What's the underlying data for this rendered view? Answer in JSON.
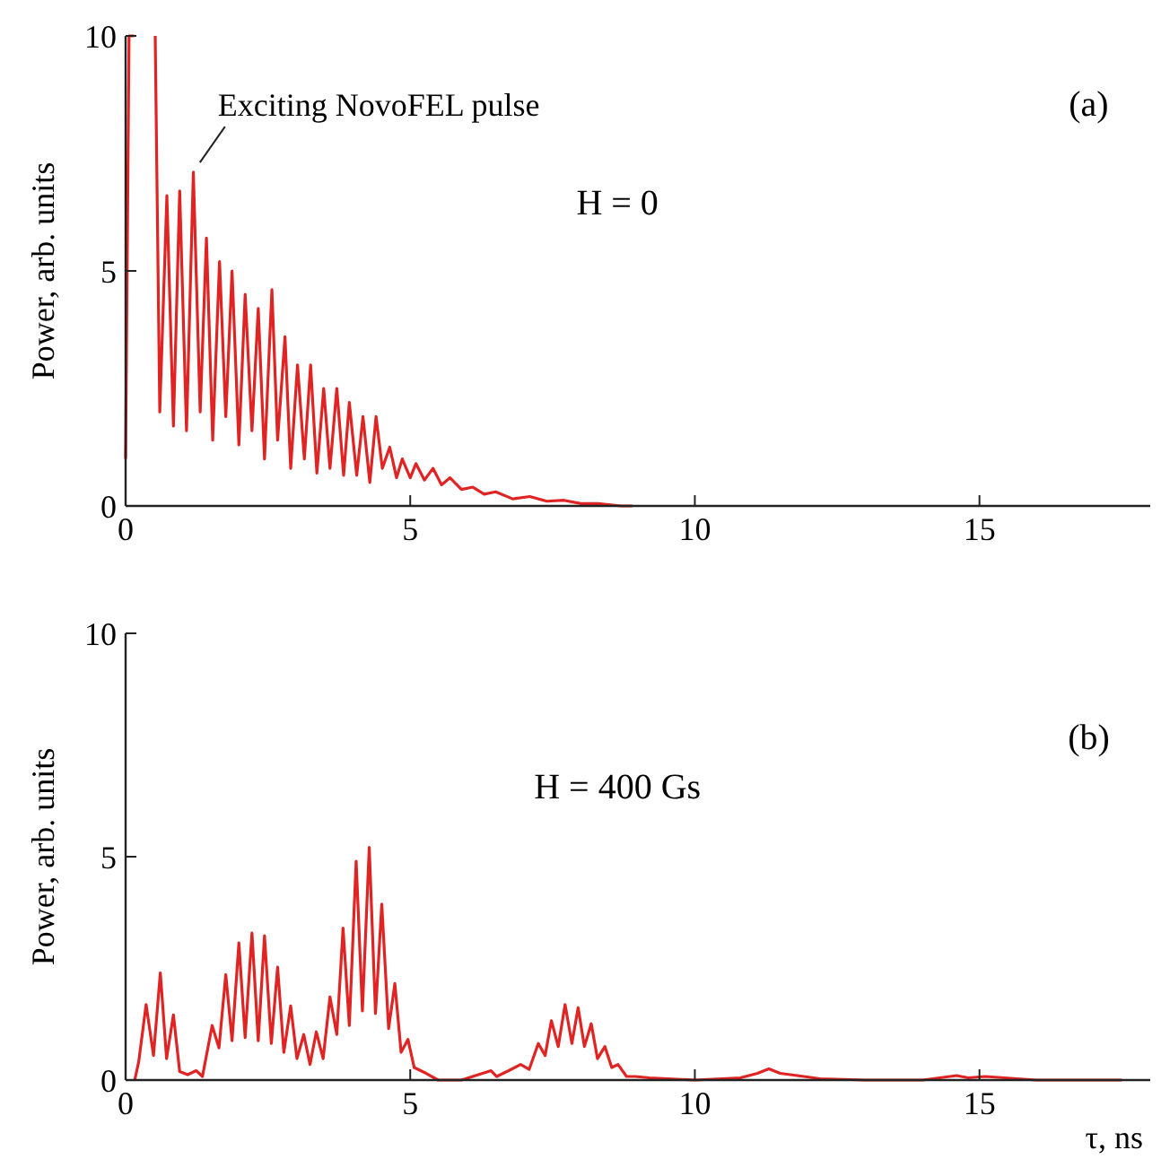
{
  "chart_data": [
    {
      "type": "line",
      "ylabel": "Power, arb. units",
      "xlim": [
        0,
        18
      ],
      "ylim": [
        0,
        10
      ],
      "xticks": [
        0,
        5,
        10,
        15
      ],
      "yticks": [
        0,
        5,
        10
      ],
      "grid": false,
      "marker": "none",
      "line_style": "solid",
      "annotations": [
        "Exciting NovoFEL pulse",
        "H = 0",
        "(a)"
      ],
      "series": [
        {
          "color": "#e02424",
          "x": [
            0,
            0.06,
            0.15,
            0.3,
            0.52,
            0.6,
            0.725,
            0.84,
            0.95,
            1.07,
            1.19,
            1.31,
            1.42,
            1.53,
            1.65,
            1.76,
            1.87,
            1.99,
            2.1,
            2.22,
            2.33,
            2.44,
            2.57,
            2.67,
            2.8,
            2.9,
            3.02,
            3.14,
            3.25,
            3.36,
            3.48,
            3.59,
            3.71,
            3.83,
            3.93,
            4.06,
            4.17,
            4.29,
            4.4,
            4.51,
            4.64,
            4.76,
            4.86,
            5.0,
            5.1,
            5.25,
            5.4,
            5.55,
            5.7,
            5.9,
            6.1,
            6.3,
            6.5,
            6.8,
            7.1,
            7.4,
            7.7,
            8.0,
            8.3,
            8.7,
            8.9
          ],
          "values": [
            1,
            10,
            10,
            null,
            10,
            2,
            6.6,
            1.7,
            6.7,
            1.6,
            7.1,
            2,
            5.7,
            1.4,
            5.2,
            1.9,
            5,
            1.3,
            4.5,
            1.6,
            4.2,
            1,
            4.6,
            1.4,
            3.6,
            0.8,
            3,
            1,
            3,
            0.7,
            2.5,
            0.8,
            2.5,
            0.65,
            2.2,
            0.65,
            1.9,
            0.5,
            1.9,
            0.8,
            1.25,
            0.6,
            1,
            0.6,
            0.9,
            0.55,
            0.8,
            0.45,
            0.6,
            0.35,
            0.4,
            0.25,
            0.3,
            0.15,
            0.2,
            0.1,
            0.12,
            0.05,
            0.05,
            0,
            0
          ]
        }
      ]
    },
    {
      "type": "line",
      "xlabel": "τ, ns",
      "ylabel": "Power, arb. units",
      "xlim": [
        0,
        18
      ],
      "ylim": [
        0,
        10
      ],
      "xticks": [
        0,
        5,
        10,
        15
      ],
      "yticks": [
        0,
        5,
        10
      ],
      "grid": false,
      "marker": "none",
      "line_style": "solid",
      "annotations": [
        "H = 400 Gs",
        "(b)"
      ],
      "series": [
        {
          "color": "#e02424",
          "x": [
            0.16,
            0.23,
            0.36,
            0.49,
            0.61,
            0.72,
            0.84,
            0.95,
            1.09,
            1.24,
            1.35,
            1.52,
            1.64,
            1.76,
            1.87,
            1.99,
            2.1,
            2.22,
            2.33,
            2.44,
            2.56,
            2.67,
            2.78,
            2.9,
            3.01,
            3.13,
            3.24,
            3.35,
            3.47,
            3.59,
            3.71,
            3.82,
            3.93,
            4.05,
            4.16,
            4.28,
            4.39,
            4.5,
            4.62,
            4.73,
            4.84,
            4.96,
            5.07,
            5.28,
            5.49,
            5.9,
            6.42,
            6.52,
            6.73,
            6.94,
            7.09,
            7.25,
            7.37,
            7.48,
            7.6,
            7.72,
            7.84,
            7.95,
            8.06,
            8.18,
            8.29,
            8.42,
            8.54,
            8.65,
            8.8,
            8.95,
            9.2,
            10,
            10.8,
            11.1,
            11.3,
            11.5,
            11.8,
            12.2,
            13,
            14,
            14.6,
            14.8,
            15.1,
            16,
            17.5
          ],
          "values": [
            0,
            0.41,
            1.69,
            0.55,
            2.4,
            0.48,
            1.46,
            0.19,
            0.12,
            0.21,
            0.08,
            1.22,
            0.72,
            2.36,
            0.88,
            3.07,
            0.95,
            3.29,
            0.88,
            3.23,
            0.82,
            2.53,
            0.62,
            1.66,
            0.48,
            1.02,
            0.35,
            1.08,
            0.48,
            1.86,
            1.02,
            3.4,
            1.22,
            4.9,
            1.55,
            5.21,
            1.49,
            3.94,
            1.15,
            2.16,
            0.62,
            0.91,
            0.28,
            0.15,
            0,
            0,
            0.21,
            0.08,
            0.21,
            0.35,
            0.24,
            0.82,
            0.55,
            1.33,
            0.75,
            1.69,
            0.82,
            1.62,
            0.75,
            1.26,
            0.48,
            0.75,
            0.28,
            0.35,
            0.08,
            0.08,
            0.05,
            0,
            0.05,
            0.15,
            0.25,
            0.15,
            0.1,
            0.03,
            0,
            0,
            0.1,
            0.05,
            0.08,
            0,
            0
          ]
        }
      ]
    }
  ]
}
